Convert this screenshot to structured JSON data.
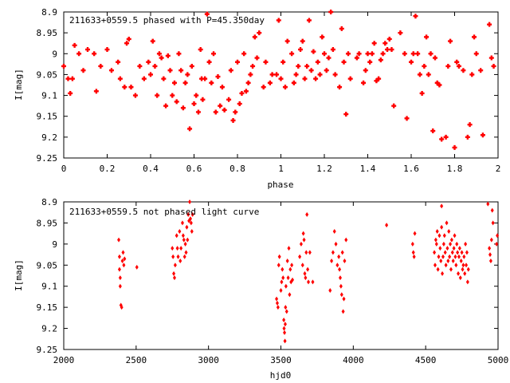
{
  "chart_data": [
    {
      "type": "scatter",
      "title": "211633+0559.5 phased with P=45.350day",
      "xlabel": "phase",
      "ylabel": "I[mag]",
      "xlim": [
        0,
        2
      ],
      "ylim": [
        9.25,
        8.9
      ],
      "y_inverted": true,
      "xticks": [
        "0",
        "0.2",
        "0.4",
        "0.6",
        "0.8",
        "1",
        "1.2",
        "1.4",
        "1.6",
        "1.8",
        "2"
      ],
      "yticks": [
        "8.9",
        "8.95",
        "9",
        "9.05",
        "9.1",
        "9.15",
        "9.2",
        "9.25"
      ],
      "marker": "cross",
      "color": "#ff0000",
      "points": [
        [
          0.0,
          9.03
        ],
        [
          0.02,
          9.06
        ],
        [
          0.03,
          9.095
        ],
        [
          0.04,
          9.06
        ],
        [
          0.05,
          8.98
        ],
        [
          0.07,
          9.0
        ],
        [
          0.09,
          9.04
        ],
        [
          0.11,
          8.99
        ],
        [
          0.14,
          9.0
        ],
        [
          0.15,
          9.09
        ],
        [
          0.17,
          9.03
        ],
        [
          0.2,
          8.99
        ],
        [
          0.22,
          9.04
        ],
        [
          0.25,
          9.02
        ],
        [
          0.26,
          9.06
        ],
        [
          0.28,
          9.08
        ],
        [
          0.29,
          8.975
        ],
        [
          0.3,
          8.965
        ],
        [
          0.31,
          9.08
        ],
        [
          0.33,
          9.1
        ],
        [
          0.35,
          9.03
        ],
        [
          0.37,
          9.06
        ],
        [
          0.39,
          9.02
        ],
        [
          0.4,
          9.05
        ],
        [
          0.41,
          8.97
        ],
        [
          0.42,
          9.03
        ],
        [
          0.43,
          9.1
        ],
        [
          0.44,
          9.0
        ],
        [
          0.45,
          9.01
        ],
        [
          0.46,
          9.06
        ],
        [
          0.47,
          9.125
        ],
        [
          0.48,
          9.005
        ],
        [
          0.49,
          9.04
        ],
        [
          0.5,
          9.1
        ],
        [
          0.51,
          9.07
        ],
        [
          0.52,
          9.115
        ],
        [
          0.53,
          9.0
        ],
        [
          0.54,
          9.04
        ],
        [
          0.55,
          9.13
        ],
        [
          0.56,
          9.07
        ],
        [
          0.57,
          9.05
        ],
        [
          0.58,
          9.18
        ],
        [
          0.59,
          9.03
        ],
        [
          0.6,
          9.12
        ],
        [
          0.61,
          9.1
        ],
        [
          0.62,
          9.14
        ],
        [
          0.63,
          8.99
        ],
        [
          0.635,
          9.06
        ],
        [
          0.64,
          9.11
        ],
        [
          0.65,
          9.06
        ],
        [
          0.66,
          8.905
        ],
        [
          0.67,
          9.02
        ],
        [
          0.68,
          9.07
        ],
        [
          0.69,
          9.0
        ],
        [
          0.7,
          9.14
        ],
        [
          0.71,
          9.055
        ],
        [
          0.72,
          9.125
        ],
        [
          0.73,
          9.08
        ],
        [
          0.74,
          9.135
        ],
        [
          0.76,
          9.11
        ],
        [
          0.77,
          9.04
        ],
        [
          0.78,
          9.16
        ],
        [
          0.79,
          9.14
        ],
        [
          0.8,
          9.02
        ],
        [
          0.81,
          9.12
        ],
        [
          0.82,
          9.095
        ],
        [
          0.83,
          9.0
        ],
        [
          0.84,
          9.09
        ],
        [
          0.85,
          9.07
        ],
        [
          0.86,
          9.05
        ],
        [
          0.87,
          9.03
        ],
        [
          0.88,
          8.96
        ],
        [
          0.89,
          9.01
        ],
        [
          0.9,
          8.95
        ],
        [
          0.92,
          9.08
        ],
        [
          0.93,
          9.02
        ],
        [
          0.95,
          9.07
        ],
        [
          0.96,
          9.05
        ],
        [
          0.98,
          9.05
        ],
        [
          0.99,
          8.92
        ],
        [
          1.0,
          9.06
        ],
        [
          1.01,
          9.02
        ],
        [
          1.02,
          9.08
        ],
        [
          1.03,
          8.97
        ],
        [
          1.05,
          9.0
        ],
        [
          1.06,
          9.07
        ],
        [
          1.07,
          9.05
        ],
        [
          1.08,
          9.03
        ],
        [
          1.09,
          8.99
        ],
        [
          1.1,
          8.97
        ],
        [
          1.11,
          9.06
        ],
        [
          1.12,
          9.03
        ],
        [
          1.13,
          8.92
        ],
        [
          1.14,
          9.04
        ],
        [
          1.15,
          8.995
        ],
        [
          1.16,
          9.06
        ],
        [
          1.17,
          9.02
        ],
        [
          1.18,
          9.05
        ],
        [
          1.19,
          8.96
        ],
        [
          1.2,
          9.0
        ],
        [
          1.21,
          9.04
        ],
        [
          1.22,
          9.01
        ],
        [
          1.23,
          8.9
        ],
        [
          1.24,
          8.99
        ],
        [
          1.25,
          9.05
        ],
        [
          1.27,
          9.08
        ],
        [
          1.28,
          8.94
        ],
        [
          1.29,
          9.02
        ],
        [
          1.3,
          9.145
        ],
        [
          1.31,
          9.0
        ],
        [
          1.32,
          9.06
        ],
        [
          1.35,
          9.01
        ],
        [
          1.36,
          9.0
        ],
        [
          1.38,
          9.07
        ],
        [
          1.39,
          9.04
        ],
        [
          1.4,
          9.0
        ],
        [
          1.41,
          9.02
        ],
        [
          1.42,
          9.0
        ],
        [
          1.43,
          8.975
        ],
        [
          1.44,
          9.065
        ],
        [
          1.45,
          9.06
        ],
        [
          1.46,
          9.015
        ],
        [
          1.47,
          9.0
        ],
        [
          1.48,
          8.975
        ],
        [
          1.49,
          8.99
        ],
        [
          1.5,
          8.965
        ],
        [
          1.51,
          8.99
        ],
        [
          1.52,
          9.125
        ],
        [
          1.55,
          8.95
        ],
        [
          1.57,
          9.0
        ],
        [
          1.58,
          9.155
        ],
        [
          1.6,
          9.02
        ],
        [
          1.61,
          9.0
        ],
        [
          1.62,
          8.91
        ],
        [
          1.63,
          9.0
        ],
        [
          1.64,
          9.05
        ],
        [
          1.65,
          9.095
        ],
        [
          1.66,
          9.03
        ],
        [
          1.67,
          8.96
        ],
        [
          1.68,
          9.05
        ],
        [
          1.69,
          9.0
        ],
        [
          1.7,
          9.185
        ],
        [
          1.71,
          9.01
        ],
        [
          1.72,
          9.07
        ],
        [
          1.73,
          9.075
        ],
        [
          1.74,
          9.205
        ],
        [
          1.76,
          9.2
        ],
        [
          1.77,
          9.03
        ],
        [
          1.78,
          8.97
        ],
        [
          1.8,
          9.225
        ],
        [
          1.81,
          9.02
        ],
        [
          1.82,
          9.03
        ],
        [
          1.84,
          9.04
        ],
        [
          1.86,
          9.2
        ],
        [
          1.87,
          9.17
        ],
        [
          1.88,
          9.05
        ],
        [
          1.89,
          8.96
        ],
        [
          1.9,
          9.0
        ],
        [
          1.92,
          9.04
        ],
        [
          1.93,
          9.195
        ],
        [
          1.96,
          8.93
        ],
        [
          1.97,
          9.01
        ],
        [
          1.98,
          9.03
        ]
      ]
    },
    {
      "type": "scatter",
      "title": "211633+0559.5 not phased light curve",
      "xlabel": "hjd0",
      "ylabel": "I[mag]",
      "xlim": [
        2000,
        5000
      ],
      "ylim": [
        9.25,
        8.9
      ],
      "y_inverted": true,
      "xticks": [
        "2000",
        "2500",
        "3000",
        "3500",
        "4000",
        "4500",
        "5000"
      ],
      "yticks": [
        "8.9",
        "8.95",
        "9",
        "9.05",
        "9.1",
        "9.15",
        "9.2",
        "9.25"
      ],
      "marker": "diamond",
      "color": "#ff0000",
      "points": [
        [
          2380,
          8.99
        ],
        [
          2385,
          9.03
        ],
        [
          2385,
          9.06
        ],
        [
          2390,
          9.08
        ],
        [
          2390,
          9.1
        ],
        [
          2395,
          9.145
        ],
        [
          2400,
          9.15
        ],
        [
          2405,
          9.04
        ],
        [
          2410,
          9.02
        ],
        [
          2415,
          9.05
        ],
        [
          2420,
          9.035
        ],
        [
          2505,
          9.055
        ],
        [
          2750,
          9.01
        ],
        [
          2755,
          9.03
        ],
        [
          2760,
          9.07
        ],
        [
          2765,
          9.08
        ],
        [
          2770,
          9.05
        ],
        [
          2780,
          8.98
        ],
        [
          2785,
          9.01
        ],
        [
          2790,
          9.03
        ],
        [
          2800,
          8.97
        ],
        [
          2805,
          9.04
        ],
        [
          2810,
          9.01
        ],
        [
          2820,
          8.95
        ],
        [
          2825,
          8.98
        ],
        [
          2830,
          8.99
        ],
        [
          2835,
          9.03
        ],
        [
          2840,
          9.0
        ],
        [
          2845,
          9.02
        ],
        [
          2850,
          8.96
        ],
        [
          2855,
          8.99
        ],
        [
          2860,
          8.93
        ],
        [
          2865,
          8.945
        ],
        [
          2870,
          8.9
        ],
        [
          2875,
          8.94
        ],
        [
          2880,
          8.95
        ],
        [
          2885,
          8.97
        ],
        [
          2890,
          8.93
        ],
        [
          3470,
          9.13
        ],
        [
          3475,
          9.14
        ],
        [
          3480,
          9.15
        ],
        [
          3485,
          9.05
        ],
        [
          3490,
          9.03
        ],
        [
          3500,
          9.11
        ],
        [
          3505,
          9.09
        ],
        [
          3510,
          9.06
        ],
        [
          3515,
          9.08
        ],
        [
          3520,
          9.18
        ],
        [
          3522,
          9.2
        ],
        [
          3525,
          9.21
        ],
        [
          3528,
          9.23
        ],
        [
          3530,
          9.19
        ],
        [
          3532,
          9.15
        ],
        [
          3535,
          9.1
        ],
        [
          3540,
          9.16
        ],
        [
          3545,
          9.04
        ],
        [
          3550,
          9.08
        ],
        [
          3555,
          9.01
        ],
        [
          3560,
          9.12
        ],
        [
          3565,
          9.06
        ],
        [
          3570,
          9.09
        ],
        [
          3575,
          9.05
        ],
        [
          3580,
          9.085
        ],
        [
          3630,
          9.03
        ],
        [
          3640,
          9.0
        ],
        [
          3650,
          9.05
        ],
        [
          3655,
          8.975
        ],
        [
          3660,
          8.99
        ],
        [
          3665,
          9.07
        ],
        [
          3670,
          9.08
        ],
        [
          3675,
          9.02
        ],
        [
          3680,
          8.93
        ],
        [
          3685,
          9.06
        ],
        [
          3690,
          9.09
        ],
        [
          3700,
          9.02
        ],
        [
          3720,
          9.09
        ],
        [
          3840,
          9.11
        ],
        [
          3850,
          9.04
        ],
        [
          3860,
          9.02
        ],
        [
          3870,
          8.97
        ],
        [
          3880,
          9.0
        ],
        [
          3890,
          9.05
        ],
        [
          3900,
          9.03
        ],
        [
          3905,
          9.06
        ],
        [
          3910,
          9.08
        ],
        [
          3915,
          9.1
        ],
        [
          3920,
          9.12
        ],
        [
          3925,
          9.02
        ],
        [
          3930,
          9.16
        ],
        [
          3935,
          9.13
        ],
        [
          3940,
          9.04
        ],
        [
          3950,
          8.99
        ],
        [
          4230,
          8.955
        ],
        [
          4410,
          9.0
        ],
        [
          4415,
          9.02
        ],
        [
          4420,
          9.03
        ],
        [
          4425,
          8.975
        ],
        [
          4560,
          9.02
        ],
        [
          4565,
          9.05
        ],
        [
          4570,
          8.99
        ],
        [
          4575,
          9.0
        ],
        [
          4580,
          8.97
        ],
        [
          4585,
          9.06
        ],
        [
          4590,
          9.03
        ],
        [
          4595,
          8.98
        ],
        [
          4600,
          9.01
        ],
        [
          4605,
          9.04
        ],
        [
          4610,
          8.96
        ],
        [
          4615,
          9.07
        ],
        [
          4620,
          9.03
        ],
        [
          4625,
          9.0
        ],
        [
          4630,
          8.98
        ],
        [
          4635,
          9.02
        ],
        [
          4640,
          9.05
        ],
        [
          4645,
          8.95
        ],
        [
          4650,
          9.01
        ],
        [
          4655,
          9.04
        ],
        [
          4660,
          8.97
        ],
        [
          4665,
          9.03
        ],
        [
          4670,
          9.0
        ],
        [
          4675,
          9.06
        ],
        [
          4680,
          8.99
        ],
        [
          4685,
          9.02
        ],
        [
          4690,
          9.04
        ],
        [
          4695,
          9.01
        ],
        [
          4700,
          8.98
        ],
        [
          4705,
          9.03
        ],
        [
          4710,
          9.05
        ],
        [
          4715,
          9.0
        ],
        [
          4720,
          9.02
        ],
        [
          4725,
          9.07
        ],
        [
          4730,
          9.03
        ],
        [
          4735,
          9.01
        ],
        [
          4740,
          9.08
        ],
        [
          4745,
          9.04
        ],
        [
          4750,
          9.02
        ],
        [
          4755,
          9.06
        ],
        [
          4760,
          9.05
        ],
        [
          4765,
          9.03
        ],
        [
          4770,
          9.07
        ],
        [
          4775,
          9.0
        ],
        [
          4780,
          9.05
        ],
        [
          4785,
          9.02
        ],
        [
          4790,
          9.09
        ],
        [
          4795,
          9.06
        ],
        [
          4610,
          8.91
        ],
        [
          4930,
          8.905
        ],
        [
          4940,
          9.01
        ],
        [
          4945,
          9.025
        ],
        [
          4950,
          9.04
        ],
        [
          4955,
          8.99
        ],
        [
          4960,
          8.92
        ],
        [
          4965,
          8.95
        ],
        [
          4990,
          9.0
        ],
        [
          4995,
          8.98
        ]
      ]
    }
  ]
}
